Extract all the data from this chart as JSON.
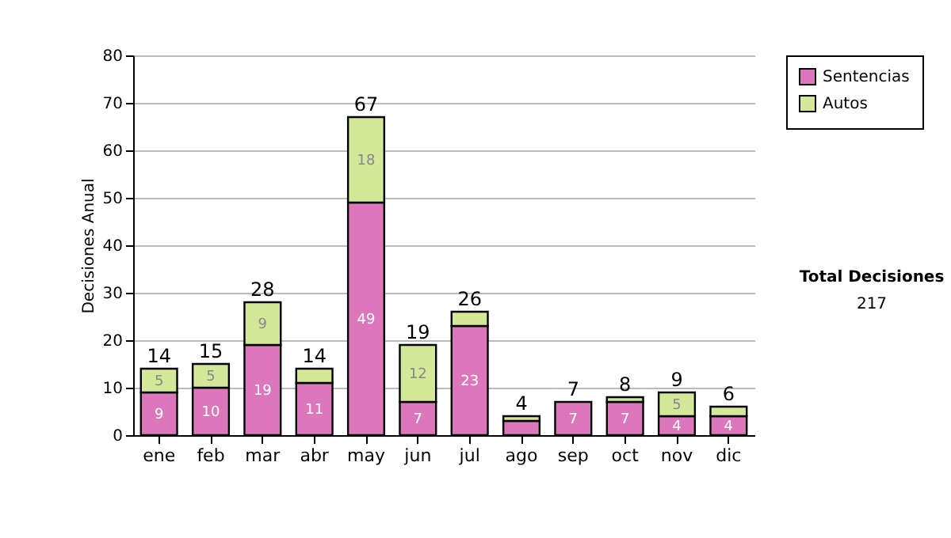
{
  "chart_data": {
    "type": "bar",
    "stacked": true,
    "ylabel": "Decisiones Anual",
    "categories": [
      "ene",
      "feb",
      "mar",
      "abr",
      "may",
      "jun",
      "jul",
      "ago",
      "sep",
      "oct",
      "nov",
      "dic"
    ],
    "series": [
      {
        "name": "Sentencias",
        "color": "#dd77bb",
        "values": [
          9,
          10,
          19,
          11,
          49,
          7,
          23,
          3,
          7,
          7,
          4,
          4
        ],
        "value_labels": [
          "9",
          "10",
          "19",
          "11",
          "49",
          "7",
          "23",
          null,
          "7",
          "7",
          "4",
          "4"
        ]
      },
      {
        "name": "Autos",
        "color": "#d4e89a",
        "values": [
          5,
          5,
          9,
          3,
          18,
          12,
          3,
          1,
          0,
          1,
          5,
          2
        ],
        "value_labels": [
          "5",
          "5",
          "9",
          null,
          "18",
          "12",
          null,
          null,
          null,
          null,
          "5",
          null
        ]
      }
    ],
    "totals": [
      "14",
      "15",
      "28",
      "14",
      "67",
      "19",
      "26",
      "4",
      "7",
      "8",
      "9",
      "6"
    ],
    "ylim": [
      0,
      80
    ],
    "yticks": [
      0,
      10,
      20,
      30,
      40,
      50,
      60,
      70,
      80
    ],
    "grid": "y",
    "legend": "right",
    "annotations": [
      "Total Decisiones",
      "217"
    ]
  }
}
